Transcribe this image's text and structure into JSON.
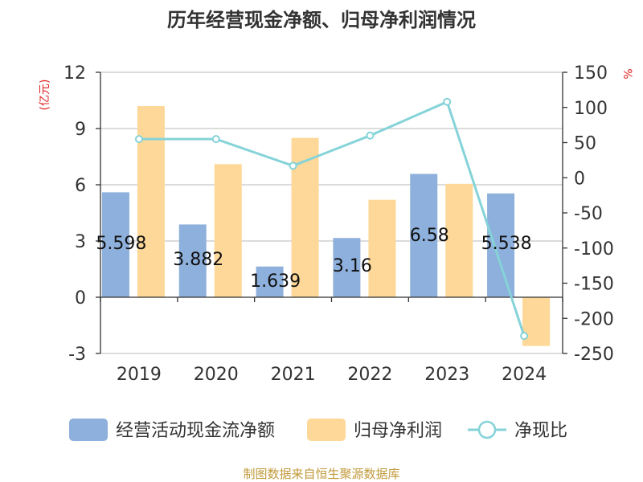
{
  "title": "历年经营现金净额、归母净利润情况",
  "left_unit": "(亿元)",
  "right_unit": "%",
  "source": "制图数据来自恒生聚源数据库",
  "colors": {
    "cashflow": "#8eb0dc",
    "profit": "#fdd898",
    "ratio": "#85d3d8",
    "unit": "#e02020",
    "source": "#c0993a",
    "grid": "#c8c8c8",
    "axis": "#333333"
  },
  "chart_data": {
    "type": "bar",
    "title": "历年经营现金净额、归母净利润情况",
    "categories": [
      "2019",
      "2020",
      "2021",
      "2022",
      "2023",
      "2024"
    ],
    "series": [
      {
        "name": "经营活动现金流净额",
        "type": "bar",
        "axis": "left",
        "values": [
          5.598,
          3.882,
          1.639,
          3.16,
          6.58,
          5.538
        ]
      },
      {
        "name": "归母净利润",
        "type": "bar",
        "axis": "left",
        "values": [
          10.2,
          7.1,
          8.5,
          5.2,
          6.05,
          -2.6
        ]
      },
      {
        "name": "净现比",
        "type": "line",
        "axis": "right",
        "values": [
          55,
          55,
          17,
          60,
          108,
          -225
        ]
      }
    ],
    "data_labels": [
      "5.598",
      "3.882",
      "1.639",
      "3.16",
      "6.58",
      "5.538"
    ],
    "y_left": {
      "label": "(亿元)",
      "ylim": [
        -3,
        12
      ],
      "ticks": [
        -3,
        0,
        3,
        6,
        9,
        12
      ]
    },
    "y_right": {
      "label": "%",
      "ylim": [
        -250,
        150
      ],
      "ticks": [
        -250,
        -200,
        -150,
        -100,
        -50,
        0,
        50,
        100,
        150
      ]
    },
    "grid": true,
    "legend": "bottom"
  }
}
